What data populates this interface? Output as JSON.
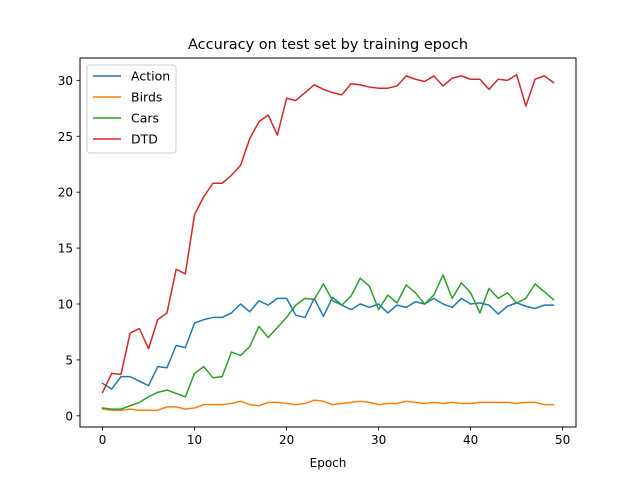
{
  "chart_data": {
    "type": "line",
    "title": "Accuracy on test set by training epoch",
    "xlabel": "Epoch",
    "ylabel": "",
    "xlim": [
      -2.45,
      51.45
    ],
    "ylim": [
      -1.0,
      32.0
    ],
    "xticks": [
      0,
      10,
      20,
      30,
      40,
      50
    ],
    "yticks": [
      0,
      5,
      10,
      15,
      20,
      25,
      30
    ],
    "grid": false,
    "legend": "top-left",
    "x": [
      0,
      1,
      2,
      3,
      4,
      5,
      6,
      7,
      8,
      9,
      10,
      11,
      12,
      13,
      14,
      15,
      16,
      17,
      18,
      19,
      20,
      21,
      22,
      23,
      24,
      25,
      26,
      27,
      28,
      29,
      30,
      31,
      32,
      33,
      34,
      35,
      36,
      37,
      38,
      39,
      40,
      41,
      42,
      43,
      44,
      45,
      46,
      47,
      48,
      49
    ],
    "series": [
      {
        "name": "Action",
        "color": "#1f77b4",
        "values": [
          2.9,
          2.4,
          3.5,
          3.5,
          3.1,
          2.7,
          4.4,
          4.3,
          6.3,
          6.1,
          8.3,
          8.6,
          8.8,
          8.8,
          9.2,
          10.0,
          9.3,
          10.3,
          9.9,
          10.5,
          10.5,
          9.0,
          8.8,
          10.5,
          8.9,
          10.6,
          9.9,
          9.5,
          10.0,
          9.7,
          10.0,
          9.2,
          9.9,
          9.7,
          10.2,
          10.0,
          10.5,
          10.0,
          9.7,
          10.5,
          10.0,
          10.1,
          9.9,
          9.1,
          9.8,
          10.1,
          9.8,
          9.6,
          9.9,
          9.9
        ]
      },
      {
        "name": "Birds",
        "color": "#ff7f0e",
        "values": [
          0.6,
          0.5,
          0.5,
          0.6,
          0.5,
          0.5,
          0.5,
          0.8,
          0.8,
          0.6,
          0.7,
          1.0,
          1.0,
          1.0,
          1.1,
          1.3,
          1.0,
          0.9,
          1.2,
          1.2,
          1.1,
          1.0,
          1.1,
          1.4,
          1.3,
          1.0,
          1.1,
          1.2,
          1.3,
          1.2,
          1.0,
          1.1,
          1.1,
          1.3,
          1.2,
          1.1,
          1.2,
          1.1,
          1.2,
          1.1,
          1.1,
          1.2,
          1.2,
          1.2,
          1.2,
          1.1,
          1.2,
          1.2,
          1.0,
          1.0
        ]
      },
      {
        "name": "Cars",
        "color": "#2ca02c",
        "values": [
          0.7,
          0.6,
          0.6,
          0.9,
          1.2,
          1.7,
          2.1,
          2.3,
          2.0,
          1.7,
          3.8,
          4.4,
          3.4,
          3.5,
          5.7,
          5.4,
          6.2,
          8.0,
          7.0,
          7.9,
          8.8,
          9.9,
          10.5,
          10.4,
          11.8,
          10.3,
          9.9,
          10.7,
          12.3,
          11.6,
          9.5,
          10.8,
          10.1,
          11.7,
          11.0,
          10.0,
          10.8,
          12.6,
          10.5,
          11.9,
          11.0,
          9.2,
          11.4,
          10.5,
          11.0,
          10.1,
          10.5,
          11.8,
          11.1,
          10.4
        ]
      },
      {
        "name": "DTD",
        "color": "#d62728",
        "values": [
          2.1,
          3.8,
          3.7,
          7.4,
          7.8,
          6.0,
          8.6,
          9.2,
          13.1,
          12.7,
          18.0,
          19.6,
          20.8,
          20.8,
          21.5,
          22.4,
          24.8,
          26.3,
          26.9,
          25.1,
          28.4,
          28.2,
          28.9,
          29.6,
          29.2,
          28.9,
          28.7,
          29.7,
          29.6,
          29.4,
          29.3,
          29.3,
          29.5,
          30.4,
          30.1,
          29.9,
          30.4,
          29.5,
          30.2,
          30.4,
          30.1,
          30.1,
          29.2,
          30.1,
          30.0,
          30.5,
          27.7,
          30.1,
          30.4,
          29.8
        ]
      }
    ]
  }
}
